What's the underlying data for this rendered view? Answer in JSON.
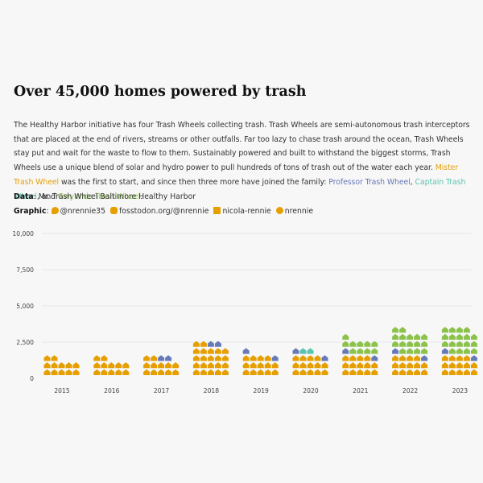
{
  "title": "Over 45,000 homes powered by trash",
  "description": {
    "part1": "The Healthy Harbor initiative has four Trash Wheels collecting trash. Trash Wheels are semi-autonomous trash interceptors that are placed at the end of rivers, streams or other outfalls. Far too lazy to chase trash around the ocean, Trash Wheels stay put and wait for the waste to flow to them. Sustainably powered and built to withstand the biggest storms, Trash Wheels use a unique blend of solar and hydro power to pull hundreds of tons of trash out of the water each year. ",
    "mister": "Mister Trash Wheel",
    "part2": " was the first to start, and since then three more have  joined the family: ",
    "professor": "Professor Trash Wheel",
    "sep1": ", ",
    "captain": "Captain Trash Wheel",
    "sep2": ", and ",
    "gwynnda": "Gwynnda Trash Wheel",
    "end": "."
  },
  "credits": {
    "data_label": "Data",
    "data_text": ": Mr. Trash Wheel Baltimore Healthy Harbor",
    "graphic_label": "Graphic",
    "graphic_sep": ": ",
    "twitter": "@nrennie35",
    "mastodon": "fosstodon.org/@nrennie",
    "linkedin": "nicola-rennie",
    "github": "nrennie",
    "icons": [
      "twitter-icon",
      "mastodon-icon",
      "linkedin-icon",
      "github-icon"
    ]
  },
  "colors": {
    "Mister Trash Wheel": "#E69F00",
    "Professor Trash Wheel": "#6679B8",
    "Captain Trash Wheel": "#5BC4B0",
    "Gwynnda Trash Wheel": "#8BC34A",
    "grid": "#e2e2e2",
    "axis_text": "#444444"
  },
  "chart_data": {
    "type": "bar",
    "subtype": "stacked waffle pictogram (house icons)",
    "categories": [
      "2015",
      "2016",
      "2017",
      "2018",
      "2019",
      "2020",
      "2021",
      "2022",
      "2023"
    ],
    "units_per_icon": 250,
    "series": [
      {
        "name": "Mister Trash Wheel",
        "values": [
          3100,
          3100,
          3100,
          5500,
          3500,
          3500,
          3500,
          3500,
          3500
        ]
      },
      {
        "name": "Professor Trash Wheel",
        "values": [
          0,
          0,
          500,
          500,
          500,
          500,
          500,
          500,
          500
        ]
      },
      {
        "name": "Captain Trash Wheel",
        "values": [
          0,
          0,
          0,
          50,
          50,
          500,
          50,
          50,
          50
        ]
      },
      {
        "name": "Gwynnda Trash Wheel",
        "values": [
          0,
          0,
          0,
          0,
          0,
          0,
          2500,
          4000,
          4500
        ]
      }
    ],
    "yticks": [
      "0",
      "2,500",
      "5,000",
      "7,500",
      "10,000"
    ],
    "ytick_values": [
      0,
      2500,
      5000,
      7500,
      10000
    ],
    "ylim": [
      0,
      10000
    ],
    "xlabel": "",
    "ylabel": "",
    "grid": true,
    "legend": "none (series colours named in the description text)"
  }
}
